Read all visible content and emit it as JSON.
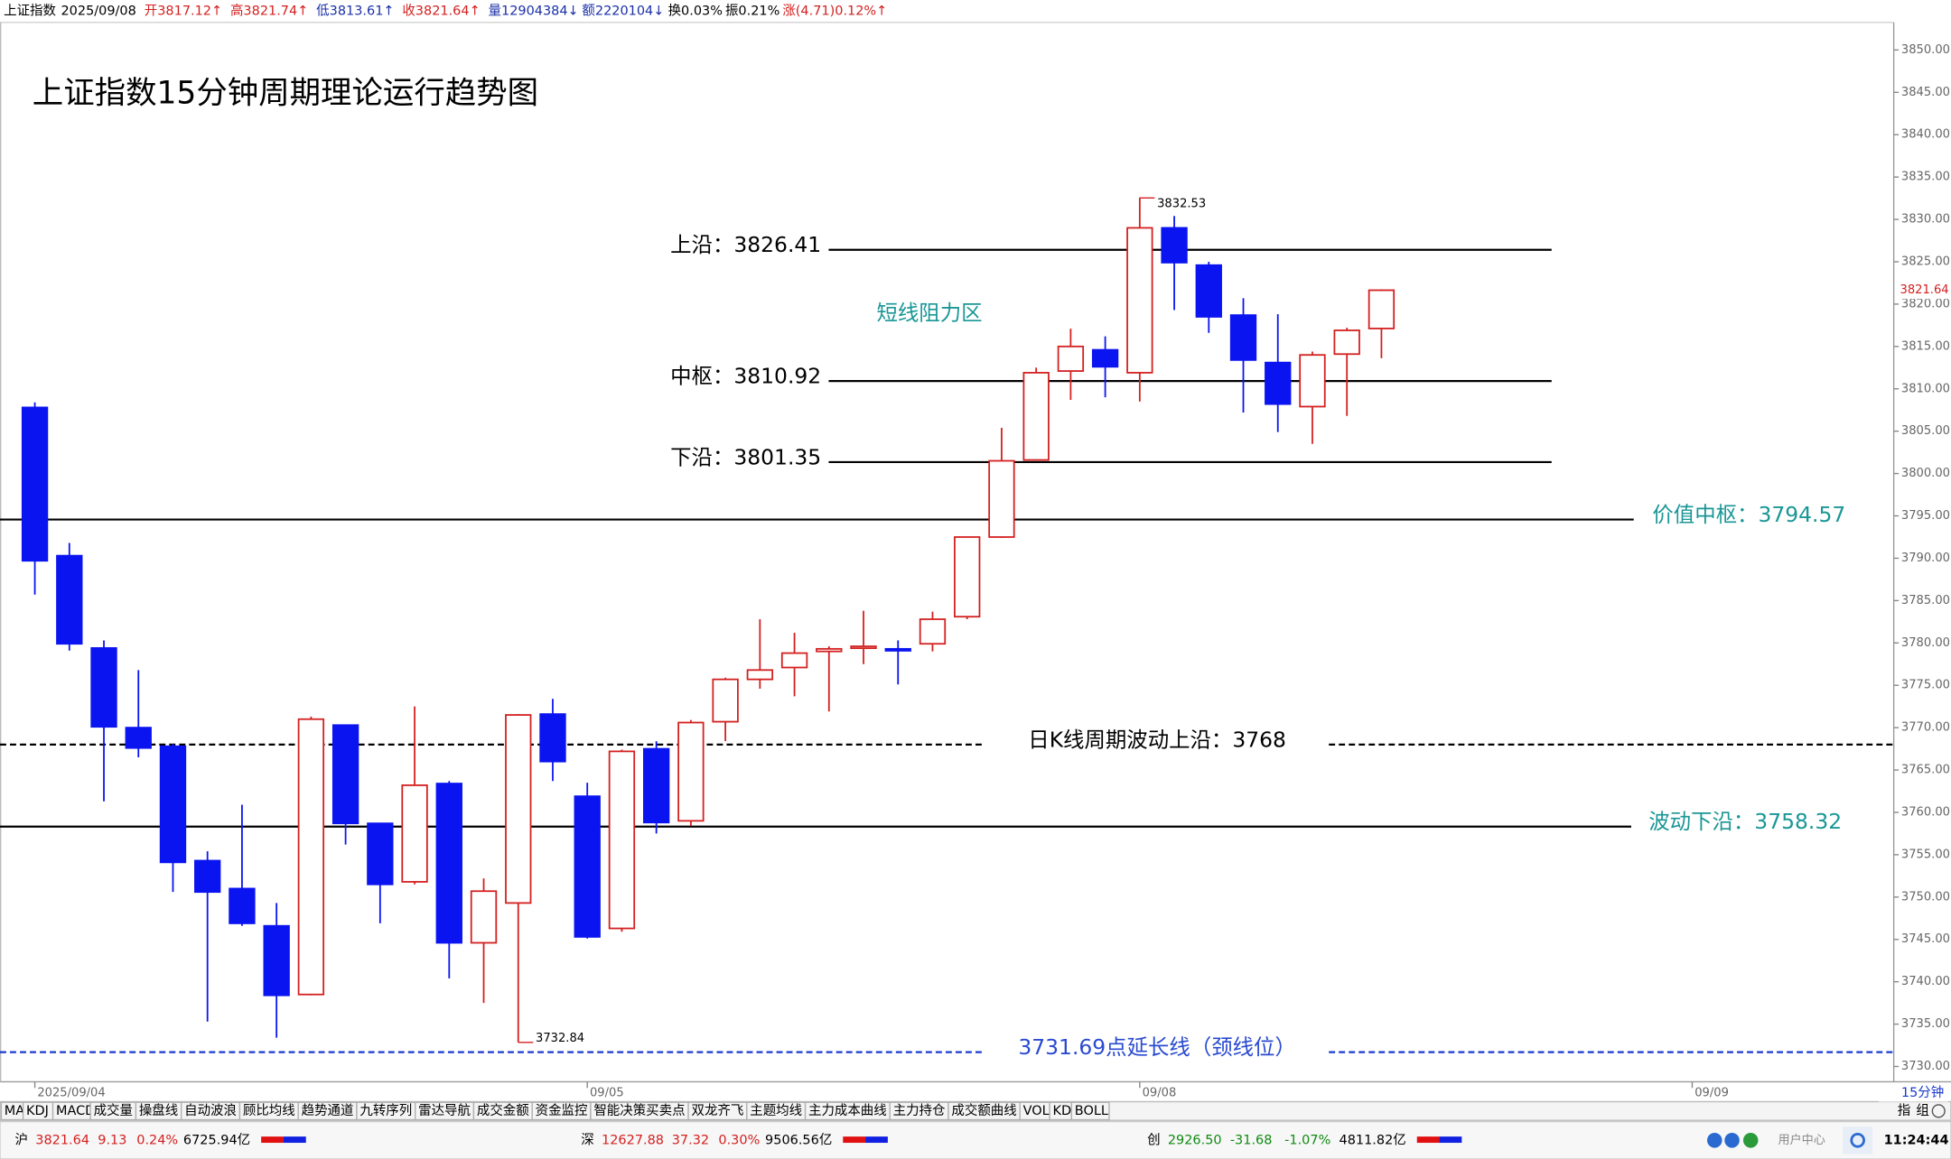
{
  "header": {
    "items": [
      {
        "text": "上证指数",
        "color": "#000000"
      },
      {
        "text": "2025/09/08",
        "color": "#000000"
      },
      {
        "text": "开3817.12↑",
        "color": "#d42020"
      },
      {
        "text": "高3821.74↑",
        "color": "#d42020"
      },
      {
        "text": "低3813.61↑",
        "color": "#1a2fa8"
      },
      {
        "text": "收3821.64↑",
        "color": "#d42020"
      },
      {
        "text": "量12904384↓",
        "color": "#1a2fa8"
      },
      {
        "text": "额2220104↓",
        "color": "#1a2fa8"
      },
      {
        "text": "换0.03%",
        "color": "#000000"
      },
      {
        "text": "振0.21%",
        "color": "#000000"
      },
      {
        "text": "涨(4.71)0.12%↑",
        "color": "#d42020"
      }
    ]
  },
  "chart_data": {
    "type": "candlestick",
    "title": "上证指数15分钟周期理论运行趋势图",
    "annotation": "短线阻力区",
    "categories": [
      "2025/09/04",
      null,
      null,
      null,
      null,
      null,
      null,
      null,
      null,
      null,
      null,
      null,
      null,
      null,
      null,
      null,
      "09/05",
      null,
      null,
      null,
      null,
      null,
      null,
      null,
      null,
      null,
      null,
      null,
      null,
      null,
      null,
      null,
      "09/08",
      null,
      null,
      null,
      null,
      null,
      null,
      null,
      null,
      null,
      null,
      null,
      null,
      null,
      null,
      null,
      "09/09"
    ],
    "open": [
      3807.8,
      3790.3,
      3779.4,
      3770.0,
      3767.8,
      3754.3,
      3751.0,
      3746.6,
      3738.5,
      3770.3,
      3758.7,
      3751.8,
      3763.4,
      3744.6,
      3749.3,
      3771.6,
      3761.9,
      3746.3,
      3767.5,
      3759.0,
      3770.7,
      3775.7,
      3777.1,
      3779.0,
      3779.4,
      3779.3,
      3779.9,
      3783.1,
      3792.5,
      3801.6,
      3812.1,
      3814.6,
      3811.9,
      3829.0,
      3824.6,
      3818.7,
      3813.1,
      3807.9,
      3814.1,
      3817.12,
      null,
      null,
      null,
      null,
      null,
      null,
      null,
      null,
      null
    ],
    "high": [
      3808.4,
      3791.8,
      3780.3,
      3776.8,
      3768.1,
      3755.4,
      3760.9,
      3749.3,
      3771.3,
      3770.3,
      3758.7,
      3772.5,
      3763.7,
      3752.2,
      3771.6,
      3773.4,
      3763.5,
      3767.4,
      3768.4,
      3770.9,
      3775.9,
      3782.8,
      3781.2,
      3779.6,
      3783.8,
      3780.3,
      3783.7,
      3792.5,
      3805.4,
      3812.5,
      3817.1,
      3816.2,
      3832.53,
      3830.4,
      3825.0,
      3820.7,
      3818.8,
      3814.4,
      3817.2,
      3821.74,
      null,
      null,
      null,
      null,
      null,
      null,
      null,
      null,
      null
    ],
    "low": [
      3785.7,
      3779.1,
      3761.3,
      3766.5,
      3750.6,
      3735.3,
      3746.6,
      3733.4,
      3738.4,
      3756.2,
      3746.9,
      3751.5,
      3740.4,
      3737.5,
      3732.84,
      3763.7,
      3745.1,
      3745.9,
      3757.5,
      3758.4,
      3768.4,
      3774.6,
      3773.7,
      3771.9,
      3777.5,
      3775.1,
      3779.0,
      3782.8,
      3792.4,
      3801.5,
      3808.7,
      3809.0,
      3808.5,
      3819.3,
      3816.6,
      3807.2,
      3804.9,
      3803.5,
      3806.8,
      3813.61,
      null,
      null,
      null,
      null,
      null,
      null,
      null,
      null,
      null
    ],
    "close": [
      3789.7,
      3779.9,
      3770.1,
      3767.6,
      3754.1,
      3750.6,
      3746.9,
      3738.4,
      3771.0,
      3758.7,
      3751.5,
      3763.2,
      3744.6,
      3750.7,
      3771.5,
      3766.0,
      3745.3,
      3767.2,
      3758.8,
      3770.6,
      3775.7,
      3776.8,
      3778.8,
      3779.3,
      3779.6,
      3779.1,
      3782.8,
      3792.5,
      3801.5,
      3811.9,
      3815.0,
      3812.6,
      3829.0,
      3824.9,
      3818.5,
      3813.4,
      3808.2,
      3814.0,
      3816.9,
      3821.64,
      null,
      null,
      null,
      null,
      null,
      null,
      null,
      null,
      null
    ],
    "up_color": "#d42020",
    "down_color": "#0a14f0",
    "ylim": [
      3728.2,
      3855.9
    ],
    "yticks": [
      {
        "value": 3730,
        "label": "3730.00"
      },
      {
        "value": 3735,
        "label": "3735.00"
      },
      {
        "value": 3740,
        "label": "3740.00"
      },
      {
        "value": 3745,
        "label": "3745.00"
      },
      {
        "value": 3750,
        "label": "3750.00"
      },
      {
        "value": 3755,
        "label": "3755.00"
      },
      {
        "value": 3760,
        "label": "3760.00"
      },
      {
        "value": 3765,
        "label": "3765.00"
      },
      {
        "value": 3770,
        "label": "3770.00"
      },
      {
        "value": 3775,
        "label": "3775.00"
      },
      {
        "value": 3780,
        "label": "3780.00"
      },
      {
        "value": 3785,
        "label": "3785.00"
      },
      {
        "value": 3790,
        "label": "3790.00"
      },
      {
        "value": 3795,
        "label": "3795.00"
      },
      {
        "value": 3800,
        "label": "3800.00"
      },
      {
        "value": 3805,
        "label": "3805.00"
      },
      {
        "value": 3810,
        "label": "3810.00"
      },
      {
        "value": 3815,
        "label": "3815.00"
      },
      {
        "value": 3820,
        "label": "3820.00"
      },
      {
        "value": 3825,
        "label": "3825.00"
      },
      {
        "value": 3830,
        "label": "3830.00"
      },
      {
        "value": 3835,
        "label": "3835.00"
      },
      {
        "value": 3840,
        "label": "3840.00"
      },
      {
        "value": 3845,
        "label": "3845.00"
      },
      {
        "value": 3850,
        "label": "3850.00"
      }
    ],
    "grid": false,
    "reference_lines": [
      {
        "label": "上沿：3826.41",
        "value": 3826.41,
        "style": "solid",
        "color": "#000000",
        "label_color": "#000000"
      },
      {
        "label": "中枢：3810.92",
        "value": 3810.92,
        "style": "solid",
        "color": "#000000",
        "label_color": "#000000"
      },
      {
        "label": "下沿：3801.35",
        "value": 3801.35,
        "style": "solid",
        "color": "#000000",
        "label_color": "#000000"
      },
      {
        "label": "价值中枢：3794.57",
        "value": 3794.57,
        "style": "solid",
        "color": "#000000",
        "label_color": "#1a9696"
      },
      {
        "label": "日K线周期波动上沿：3768",
        "value": 3768,
        "style": "dashed",
        "color": "#000000",
        "label_color": "#000000"
      },
      {
        "label": "波动下沿：3758.32",
        "value": 3758.32,
        "style": "solid",
        "color": "#000000",
        "label_color": "#1a9696"
      },
      {
        "label": "3731.69点延长线（颈线位）",
        "value": 3731.69,
        "style": "dashed",
        "color": "#1a3ad0",
        "label_color": "#2a4ad0"
      }
    ]
  },
  "toolbar": {
    "tabs": [
      "MA",
      "KDJ",
      "MACD",
      "成交量",
      "操盘线",
      "自动波浪",
      "顾比均线",
      "趋势通道",
      "九转序列",
      "雷达导航",
      "成交金额",
      "资金监控",
      "智能决策买卖点",
      "双龙齐飞",
      "主题均线",
      "主力成本曲线",
      "主力持仓",
      "成交额曲线",
      "VOL",
      "KD",
      "BOLL"
    ],
    "period": "15分钟",
    "right": [
      "指",
      "组"
    ]
  },
  "status_bar": {
    "markets": [
      {
        "items": [
          "沪",
          "3821.64",
          "9.13",
          "0.24%",
          "6725.94亿"
        ],
        "color": "#d42020"
      },
      {
        "items": [
          "深",
          "12627.88",
          "37.32",
          "0.30%",
          "9506.56亿"
        ],
        "color": "#d42020"
      },
      {
        "items": [
          "创",
          "2926.50",
          "-31.68",
          "-1.07%",
          "4811.82亿"
        ],
        "color": "#108a10"
      }
    ],
    "user": "用户中心",
    "time": "11:24:44"
  }
}
